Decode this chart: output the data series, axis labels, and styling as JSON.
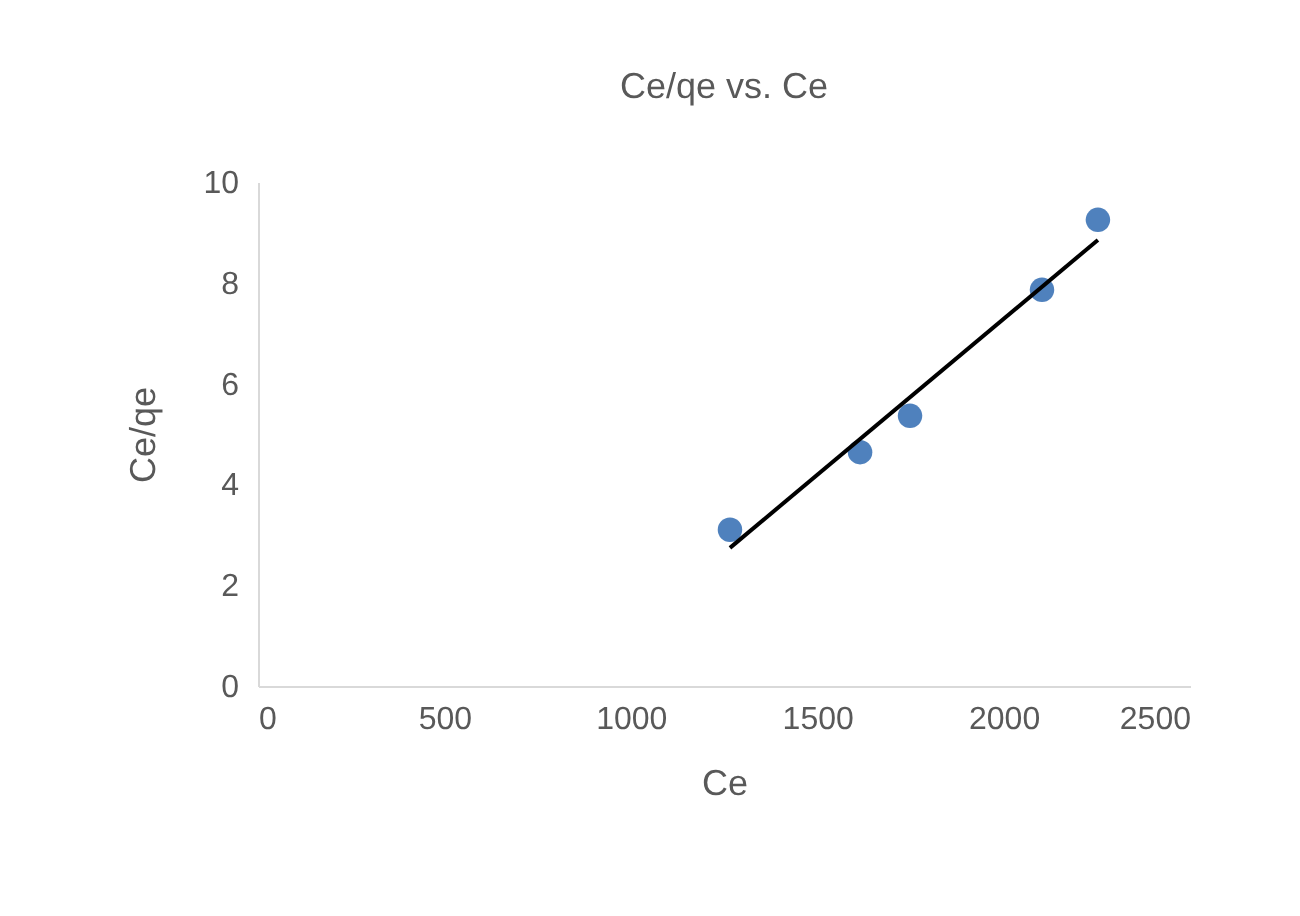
{
  "chart_data": {
    "type": "scatter",
    "title": "Ce/qe vs. Ce",
    "xlabel": "Ce",
    "ylabel": "Ce/qe",
    "xlim": [
      0,
      2500
    ],
    "xticks": [
      0,
      500,
      1000,
      1500,
      2000,
      2500
    ],
    "ylim": [
      0,
      10
    ],
    "yticks": [
      0,
      2,
      4,
      6,
      8,
      10
    ],
    "grid": false,
    "series": [
      {
        "type": "scatter",
        "marker": "circle",
        "color": "#4f81bd",
        "x": [
          1266,
          1615,
          1749,
          2103,
          2253
        ],
        "values": [
          3.1,
          4.64,
          5.36,
          7.86,
          9.25
        ]
      },
      {
        "type": "line",
        "color": "#000000",
        "x": [
          1266,
          2253
        ],
        "values": [
          2.74,
          8.85
        ]
      }
    ]
  }
}
